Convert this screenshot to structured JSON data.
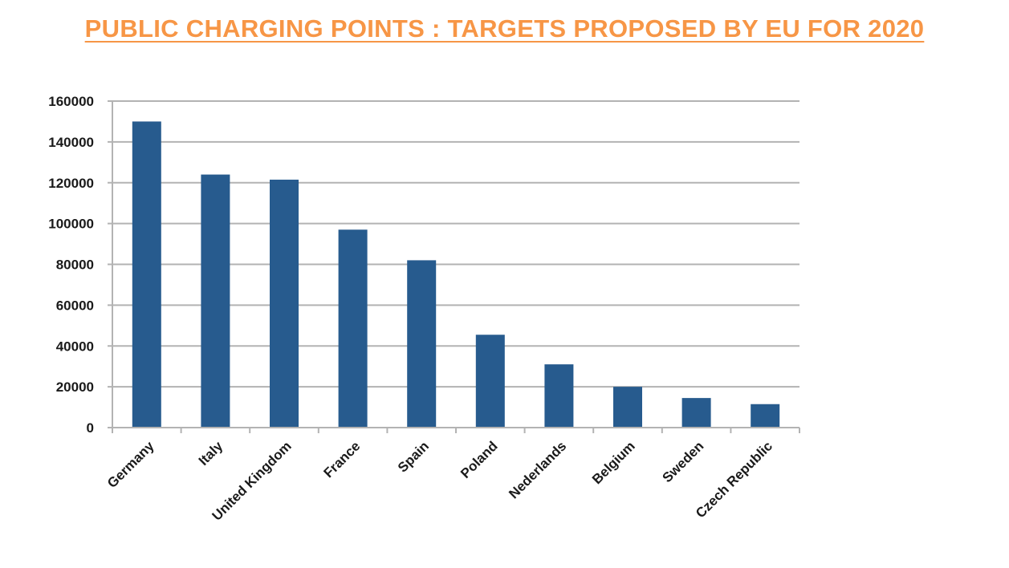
{
  "title": "PUBLIC CHARGING POINTS : TARGETS PROPOSED BY EU FOR 2020",
  "colors": {
    "title": "#f79646",
    "bar": "#275b8e",
    "grid": "#b3b3b3",
    "text": "#1a1a1a"
  },
  "chart_data": {
    "type": "bar",
    "title": "",
    "xlabel": "",
    "ylabel": "",
    "categories": [
      "Germany",
      "Italy",
      "United Kingdom",
      "France",
      "Spain",
      "Poland",
      "Nederlands",
      "Belgium",
      "Sweden",
      "Czech Republic"
    ],
    "series": [
      {
        "values": [
          150000,
          124000,
          121500,
          97000,
          82000,
          45500,
          31000,
          20000,
          14500,
          11500
        ]
      }
    ],
    "ylim": [
      0,
      160000
    ],
    "yticks": [
      0,
      20000,
      40000,
      60000,
      80000,
      100000,
      120000,
      140000,
      160000
    ],
    "ytick_labels": [
      "0",
      "20000",
      "40000",
      "60000",
      "80000",
      "100000",
      "120000",
      "140000",
      "160000"
    ],
    "grid": true,
    "legend": "none"
  }
}
